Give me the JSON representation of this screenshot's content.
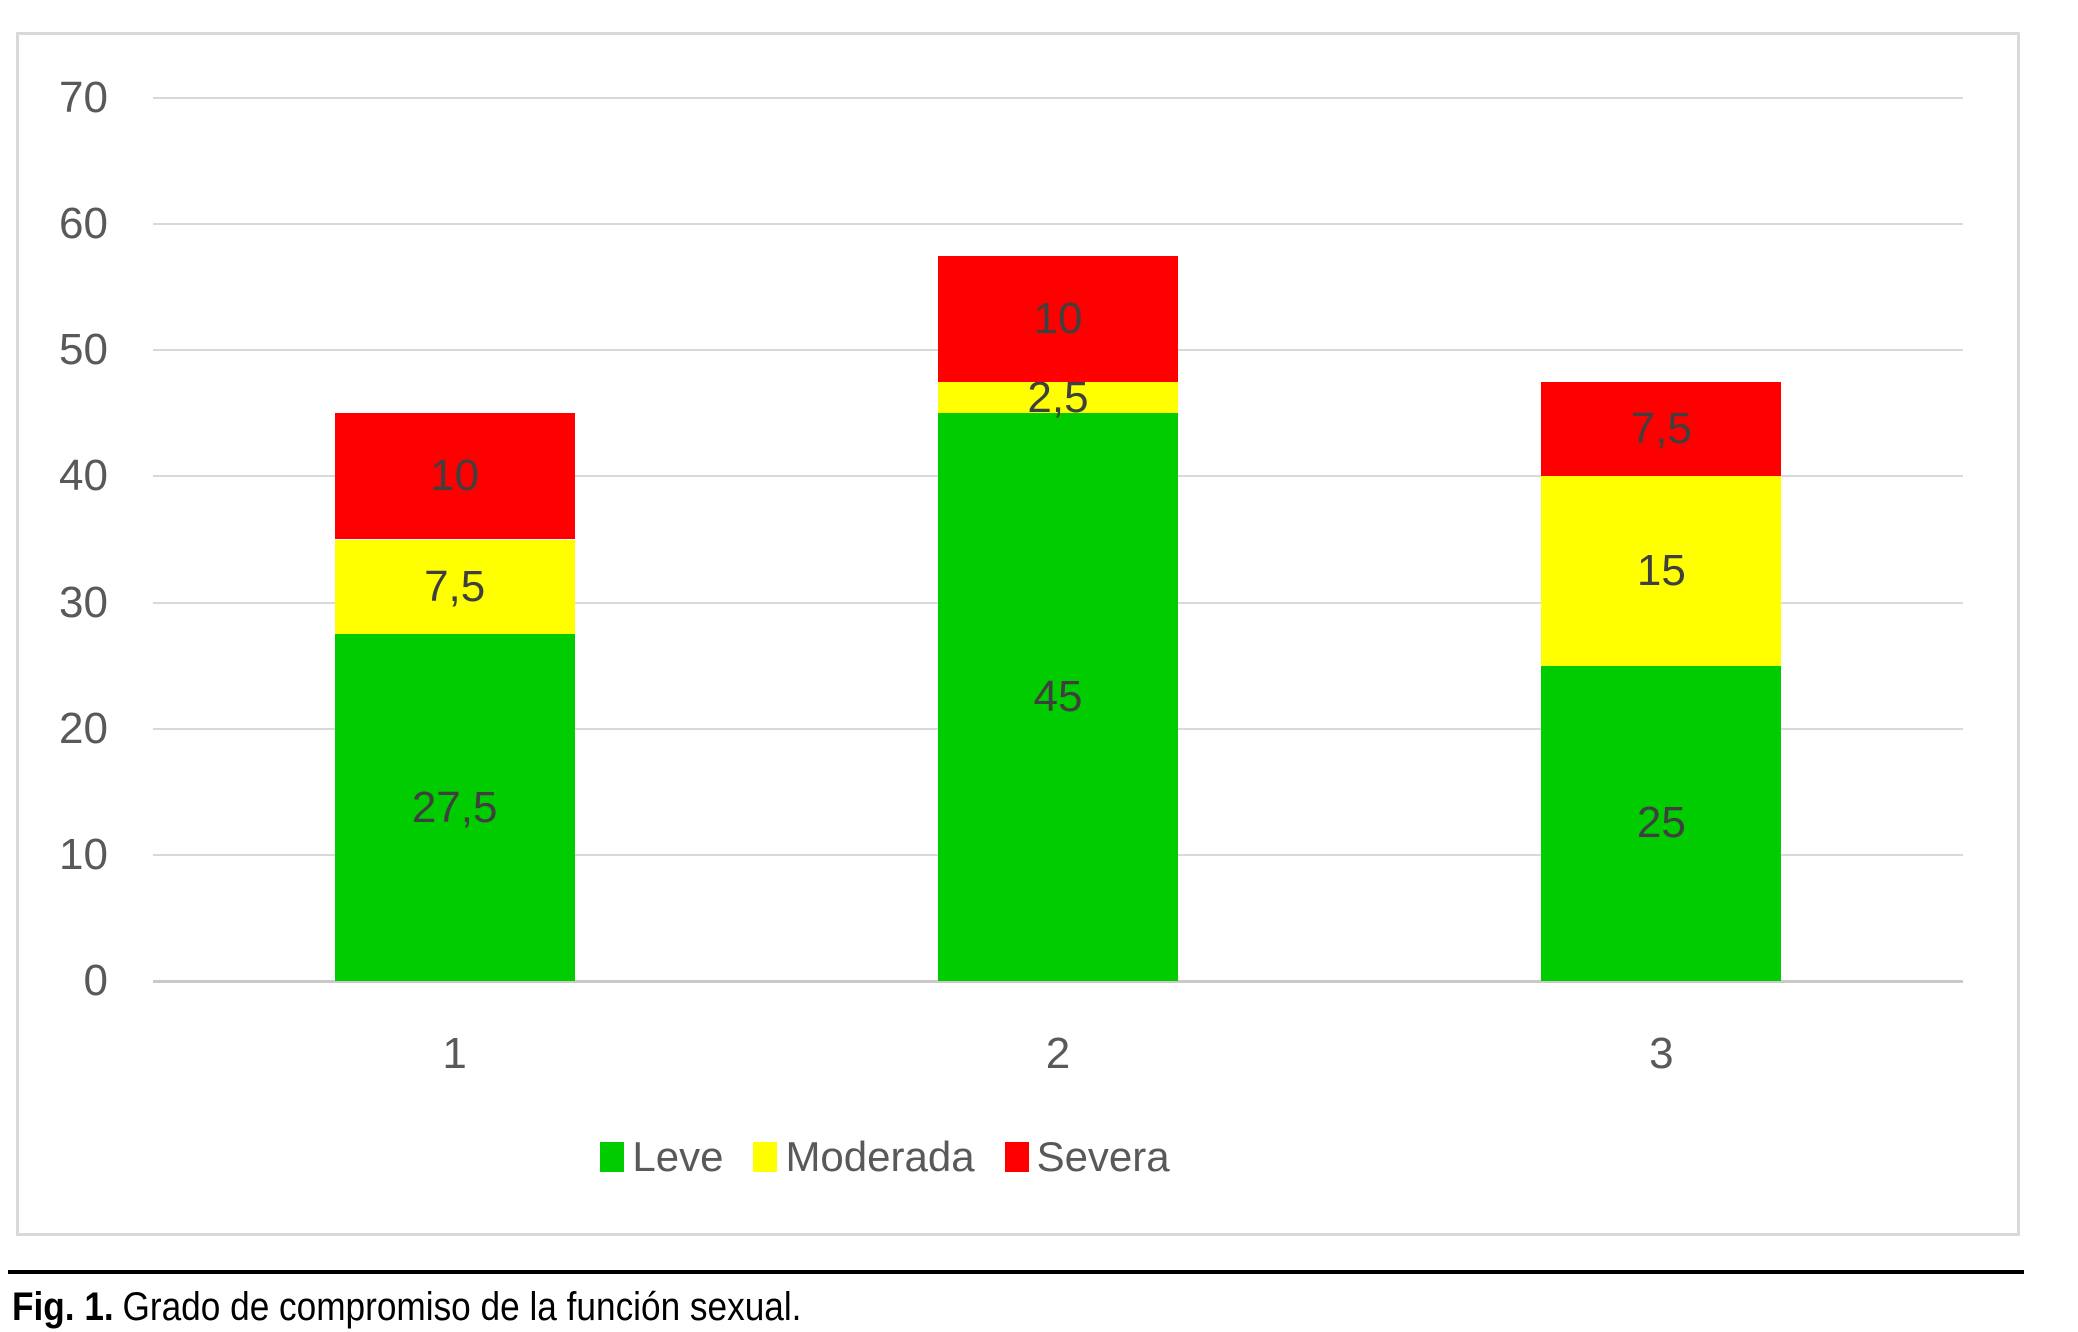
{
  "chart_data": {
    "type": "bar",
    "stacked": true,
    "title": "",
    "xlabel": "",
    "ylabel": "",
    "categories": [
      "1",
      "2",
      "3"
    ],
    "series": [
      {
        "name": "Leve",
        "color": "#00CC00",
        "values": [
          27.5,
          45,
          25
        ],
        "value_labels": [
          "27,5",
          "45",
          "25"
        ]
      },
      {
        "name": "Moderada",
        "color": "#FFFF00",
        "values": [
          7.5,
          2.5,
          15
        ],
        "value_labels": [
          "7,5",
          "2,5",
          "15"
        ]
      },
      {
        "name": "Severa",
        "color": "#FF0000",
        "values": [
          10,
          10,
          7.5
        ],
        "value_labels": [
          "10",
          "10",
          "7,5"
        ]
      }
    ],
    "totals": [
      45,
      57.5,
      47.5
    ],
    "ylim": [
      0,
      70
    ],
    "yticks": [
      70,
      60,
      50,
      40,
      30,
      20,
      10,
      0
    ],
    "grid": true,
    "legend": [
      "Leve",
      "Moderada",
      "Severa"
    ],
    "legend_position": "bottom-center"
  },
  "caption": {
    "prefix": "Fig. 1.",
    "text": "Grado de compromiso de la función sexual."
  },
  "colors": {
    "leve": "#00CC00",
    "moderada": "#FFFF00",
    "severa": "#FF0000",
    "axis_text": "#595959",
    "bar_label_text": "#3F3F3F",
    "gridline": "#D9D9D9",
    "baseline": "#C9C9C9",
    "chart_border": "#D9D9D9",
    "caption_text": "#000000"
  }
}
